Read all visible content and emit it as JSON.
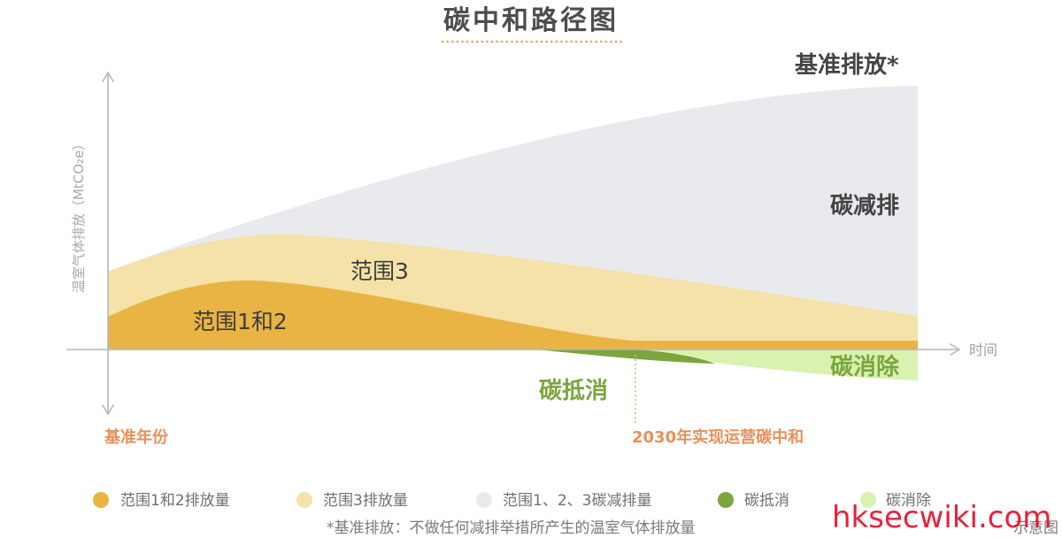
{
  "chart_data": {
    "type": "area",
    "title": "碳中和路径图",
    "xlabel": "时间",
    "ylabel": "温室气体排放（MtCO₂e）",
    "grid": false,
    "legend_position": "bottom",
    "series": [
      {
        "name": "范围1和2排放量",
        "color": "#e9b443"
      },
      {
        "name": "范围3排放量",
        "color": "#f4e2a8"
      },
      {
        "name": "范围1、2、3碳减排量",
        "color": "#e9eaee"
      },
      {
        "name": "碳抵消",
        "color": "#7ba63e"
      },
      {
        "name": "碳消除",
        "color": "#d9f2b0"
      }
    ],
    "area_labels": {
      "baseline": "基准排放*",
      "reduction": "碳减排",
      "scope3": "范围3",
      "scope12": "范围1和2",
      "offset": "碳抵消",
      "removal": "碳消除"
    },
    "x_markers": {
      "start": "基准年份",
      "target": "2030年实现运营碳中和"
    },
    "footnote": "*基准排放：不做任何减排举措所产生的温室气体排放量",
    "note": "示意图"
  },
  "watermark": "hksecwiki.com",
  "colors": {
    "axis": "#b5b5b5",
    "marker": "#e8905a",
    "marker_line": "#f0b08a",
    "title_underline": "#eba066",
    "label_green": "#7ba63e",
    "watermark": "#e5102a"
  }
}
